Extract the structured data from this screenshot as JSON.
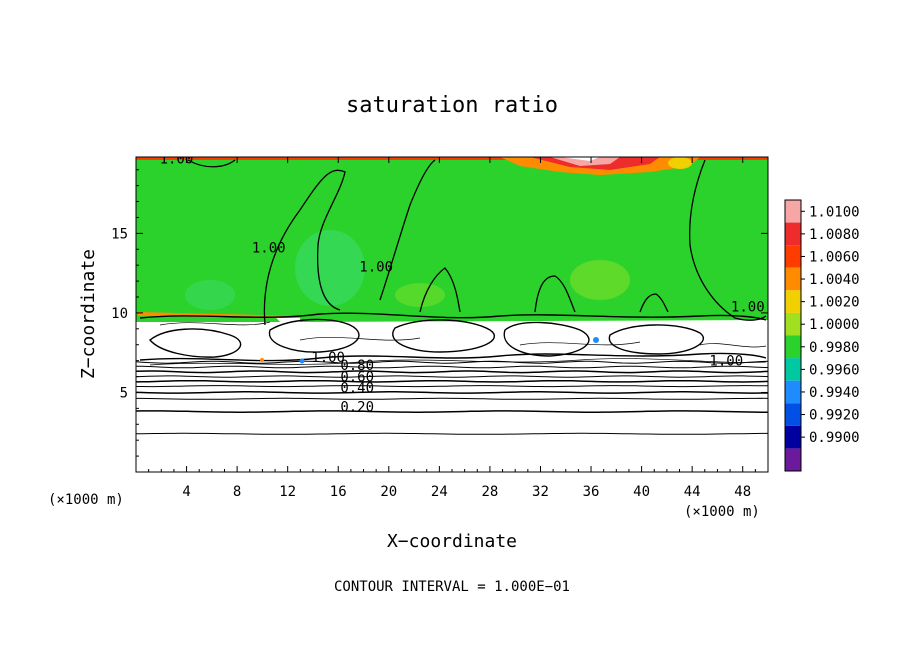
{
  "chart_data": {
    "type": "heatmap",
    "title": "saturation ratio",
    "xlabel": "X−coordinate",
    "ylabel": "Z−coordinate",
    "x_unit_left": "(×1000 m)",
    "x_unit_right": "(×1000 m)",
    "xlim": [
      0,
      50
    ],
    "ylim": [
      0,
      19.8
    ],
    "x_ticks": [
      4,
      8,
      12,
      16,
      20,
      24,
      28,
      32,
      36,
      40,
      44,
      48
    ],
    "y_ticks": [
      5,
      10,
      15
    ],
    "footer": "CONTOUR INTERVAL = 1.000E−01",
    "colorbar": {
      "levels": [
        "1.0100",
        "1.0080",
        "1.0060",
        "1.0040",
        "1.0020",
        "1.0000",
        "0.9980",
        "0.9960",
        "0.9940",
        "0.9920",
        "0.9900"
      ],
      "colors": [
        "#f7a6a6",
        "#ee2c2c",
        "#ff3c00",
        "#ff8c00",
        "#f0d000",
        "#a0e020",
        "#2cd22c",
        "#00c8a0",
        "#1e8cff",
        "#0050e6",
        "#0000a0",
        "#6a1a9a"
      ]
    },
    "contour_labels": [
      {
        "text": "1.00",
        "x": 3.2,
        "y": 19.4
      },
      {
        "text": "1.00",
        "x": 10.5,
        "y": 13.8
      },
      {
        "text": "1.00",
        "x": 19.0,
        "y": 12.6
      },
      {
        "text": "1.00",
        "x": 48.4,
        "y": 10.1
      },
      {
        "text": "1.00",
        "x": 15.2,
        "y": 6.9
      },
      {
        "text": "1.00",
        "x": 46.7,
        "y": 6.7
      },
      {
        "text": "0.80",
        "x": 17.5,
        "y": 6.4
      },
      {
        "text": "0.60",
        "x": 17.5,
        "y": 5.7
      },
      {
        "text": "0.40",
        "x": 17.5,
        "y": 5.0
      },
      {
        "text": "0.20",
        "x": 17.5,
        "y": 3.8
      }
    ],
    "fields": {
      "saturated_layer": {
        "z_bottom": 10.0,
        "z_top": 19.8,
        "value": 1.0
      }
    }
  }
}
